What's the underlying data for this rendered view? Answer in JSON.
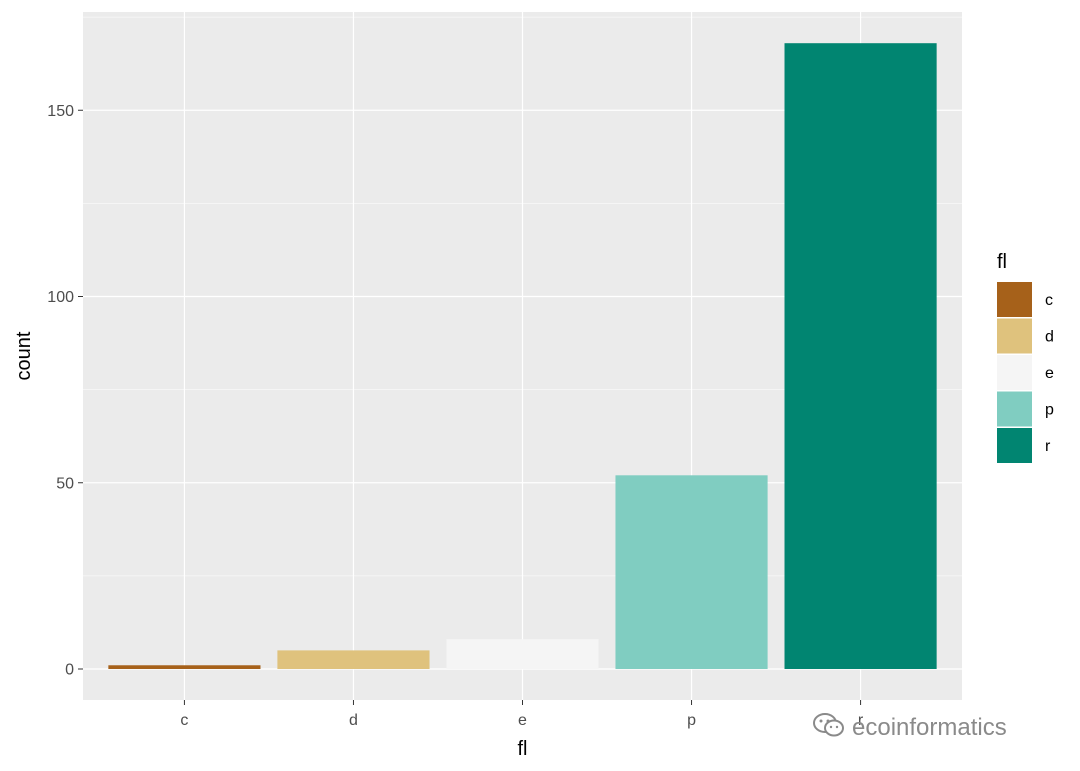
{
  "chart_data": {
    "type": "bar",
    "categories": [
      "c",
      "d",
      "e",
      "p",
      "r"
    ],
    "values": [
      1,
      5,
      8,
      52,
      168
    ],
    "colors": [
      "#a6611a",
      "#dfc27d",
      "#f5f5f5",
      "#80cdc1",
      "#018571"
    ],
    "xlabel": "fl",
    "ylabel": "count",
    "ylim": [
      0,
      175
    ],
    "yticks": [
      0,
      50,
      100,
      150
    ],
    "grid": true,
    "legend": {
      "title": "fl",
      "position": "right",
      "items": [
        "c",
        "d",
        "e",
        "p",
        "r"
      ]
    }
  },
  "watermark": {
    "text": "ecoinformatics",
    "icon": "wechat-icon"
  }
}
